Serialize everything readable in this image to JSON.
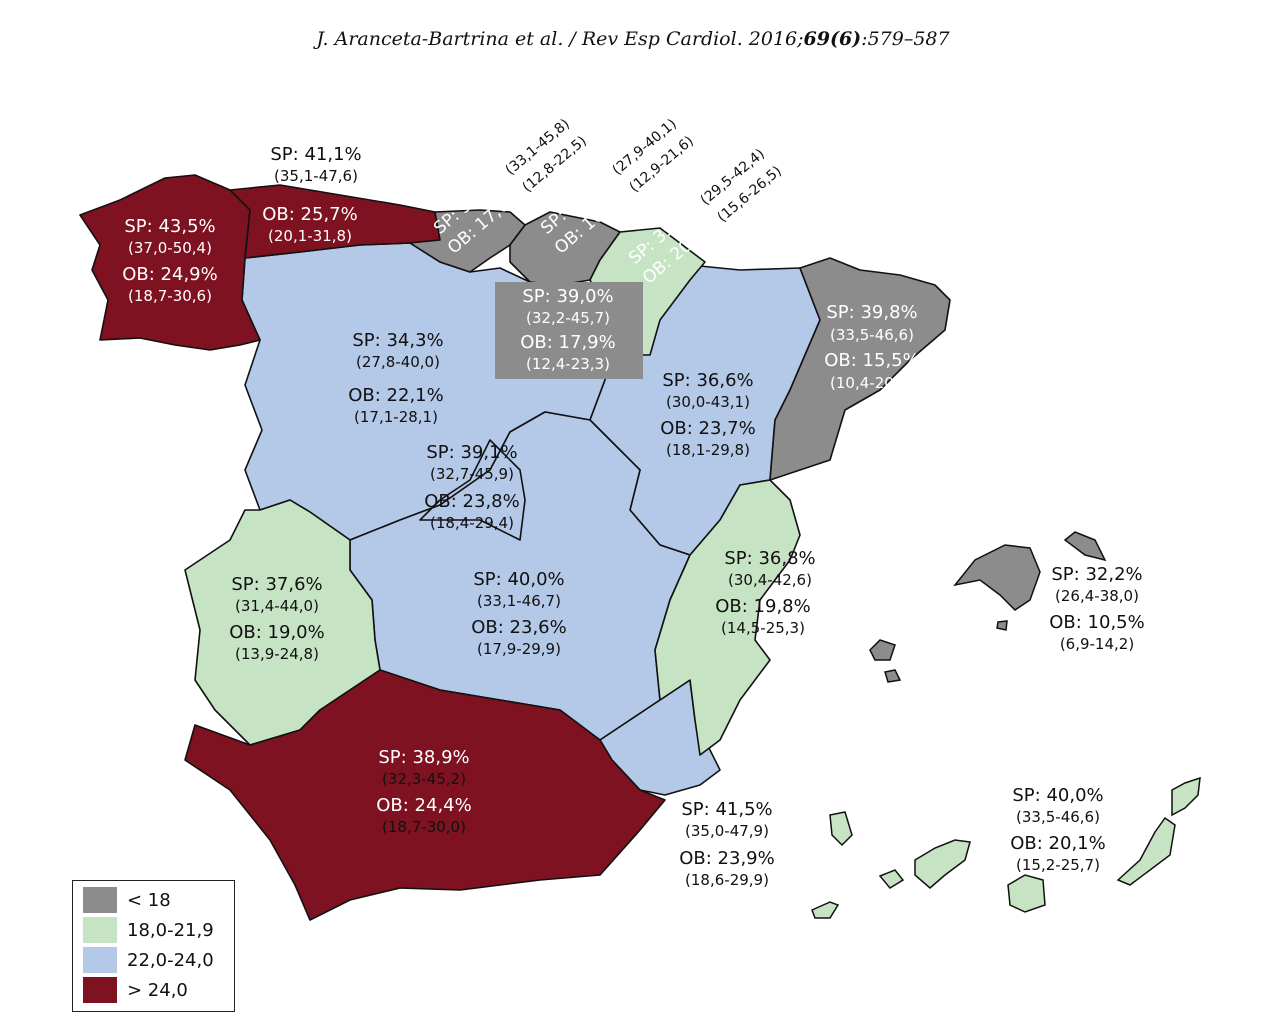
{
  "header": {
    "authors": "J. Aranceta-Bartrina et al. / Rev Esp Cardiol. 2016;",
    "volume_issue": "69(6)",
    "pages": ":579–587"
  },
  "colors": {
    "lt18": "#8c8c8c",
    "c18_21": "#c6e3c3",
    "c22_24": "#b4c8e8",
    "gt24": "#7e1221",
    "border": "#111111"
  },
  "legend": [
    {
      "label": "< 18",
      "color": "#8c8c8c"
    },
    {
      "label": "18,0-21,9",
      "color": "#c6e3c3"
    },
    {
      "label": "22,0-24,0",
      "color": "#b4c8e8"
    },
    {
      "label": "> 24,0",
      "color": "#7e1221"
    }
  ],
  "regions": {
    "galicia": {
      "sp": "SP: 43,5%",
      "sp_ci": "(37,0-50,4)",
      "ob": "OB: 24,9%",
      "ob_ci": "(18,7-30,6)",
      "category": "> 24,0"
    },
    "asturias": {
      "sp": "SP: 41,1%",
      "sp_ci": "(35,1-47,6)",
      "ob": "OB: 25,7%",
      "ob_ci": "(20,1-31,8)",
      "category": "> 24,0"
    },
    "cantabria": {
      "sp": "SP: 39,3%",
      "sp_ci": "(33,1-45,8)",
      "ob": "OB: 17,6%",
      "ob_ci": "(12,8-22,5)",
      "category": "< 18"
    },
    "pais_vasco": {
      "sp": "SP: 33,9%",
      "sp_ci": "(27,9-40,1)",
      "ob": "OB: 16,8%",
      "ob_ci": "(12,9-21,6)",
      "category": "< 18"
    },
    "navarra": {
      "sp": "SP: 35,8%",
      "sp_ci": "(29,5-42,4)",
      "ob": "OB: 20,9%",
      "ob_ci": "(15,6-26,5)",
      "category": "18,0-21,9"
    },
    "la_rioja": {
      "sp": "SP: 39,0%",
      "sp_ci": "(32,2-45,7)",
      "ob": "OB: 17,9%",
      "ob_ci": "(12,4-23,3)",
      "category": "< 18"
    },
    "castilla_leon": {
      "sp": "SP: 34,3%",
      "sp_ci": "(27,8-40,0)",
      "ob": "OB: 22,1%",
      "ob_ci": "(17,1-28,1)",
      "category": "22,0-24,0"
    },
    "aragon": {
      "sp": "SP: 36,6%",
      "sp_ci": "(30,0-43,1)",
      "ob": "OB: 23,7%",
      "ob_ci": "(18,1-29,8)",
      "category": "22,0-24,0"
    },
    "cataluna": {
      "sp": "SP: 39,8%",
      "sp_ci": "(33,5-46,6)",
      "ob": "OB: 15,5%",
      "ob_ci": "(10,4-20,4)",
      "category": "< 18"
    },
    "madrid": {
      "sp": "SP: 39,1%",
      "sp_ci": "(32,7-45,9)",
      "ob": "OB: 23,8%",
      "ob_ci": "(18,4-29,4)",
      "category": "22,0-24,0"
    },
    "extremadura": {
      "sp": "SP: 37,6%",
      "sp_ci": "(31,4-44,0)",
      "ob": "OB: 19,0%",
      "ob_ci": "(13,9-24,8)",
      "category": "18,0-21,9"
    },
    "castilla_la_mancha": {
      "sp": "SP: 40,0%",
      "sp_ci": "(33,1-46,7)",
      "ob": "OB: 23,6%",
      "ob_ci": "(17,9-29,9)",
      "category": "22,0-24,0"
    },
    "valencia": {
      "sp": "SP: 36,8%",
      "sp_ci": "(30,4-42,6)",
      "ob": "OB: 19,8%",
      "ob_ci": "(14,5-25,3)",
      "category": "18,0-21,9"
    },
    "baleares": {
      "sp": "SP: 32,2%",
      "sp_ci": "(26,4-38,0)",
      "ob": "OB: 10,5%",
      "ob_ci": "(6,9-14,2)",
      "category": "< 18"
    },
    "andalucia": {
      "sp": "SP: 38,9%",
      "sp_ci": "(32,3-45,2)",
      "ob": "OB: 24,4%",
      "ob_ci": "(18,7-30,0)",
      "category": "> 24,0"
    },
    "murcia": {
      "sp": "SP: 41,5%",
      "sp_ci": "(35,0-47,9)",
      "ob": "OB: 23,9%",
      "ob_ci": "(18,6-29,9)",
      "category": "22,0-24,0"
    },
    "canarias": {
      "sp": "SP: 40,0%",
      "sp_ci": "(33,5-46,6)",
      "ob": "OB: 20,1%",
      "ob_ci": "(15,2-25,7)",
      "category": "18,0-21,9"
    }
  }
}
